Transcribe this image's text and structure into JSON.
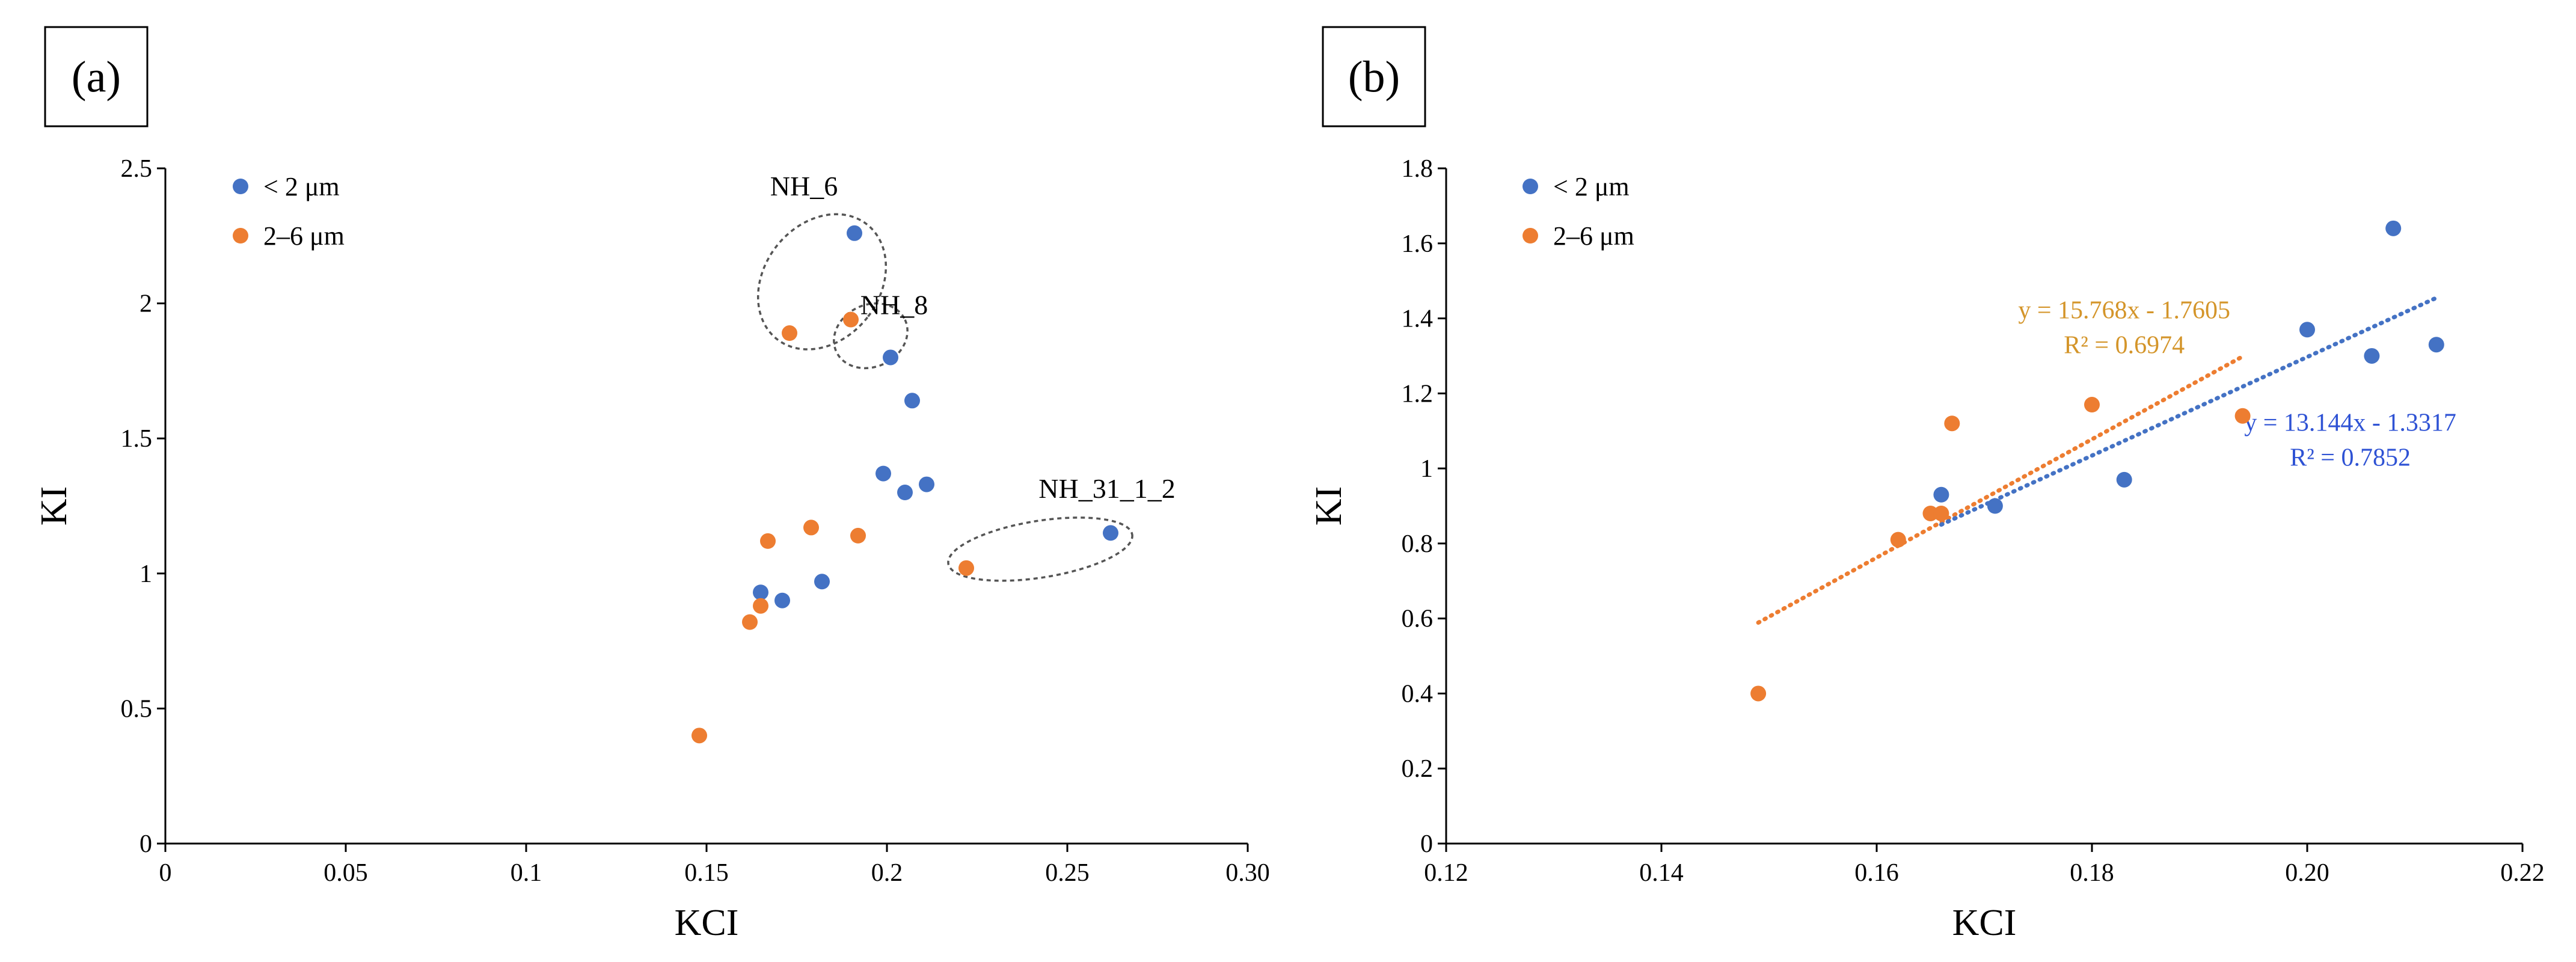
{
  "chart_data": [
    {
      "panel": "(a)",
      "type": "scatter",
      "xlabel": "KCI",
      "ylabel": "KI",
      "xlim": [
        0,
        0.3
      ],
      "ylim": [
        0,
        2.5
      ],
      "xticks": [
        "0",
        "0.05",
        "0.1",
        "0.15",
        "0.2",
        "0.25",
        "0.30"
      ],
      "yticks": [
        "0",
        "0.5",
        "1",
        "1.5",
        "2",
        "2.5"
      ],
      "legend_position": "top-left",
      "series": [
        {
          "name": "< 2 μm",
          "color": "#4472c4",
          "points": [
            [
              0.191,
              2.26
            ],
            [
              0.201,
              1.8
            ],
            [
              0.207,
              1.64
            ],
            [
              0.199,
              1.37
            ],
            [
              0.211,
              1.33
            ],
            [
              0.205,
              1.3
            ],
            [
              0.262,
              1.15
            ],
            [
              0.182,
              0.97
            ],
            [
              0.165,
              0.93
            ],
            [
              0.171,
              0.9
            ]
          ]
        },
        {
          "name": "2–6 μm",
          "color": "#ed7d31",
          "points": [
            [
              0.19,
              1.94
            ],
            [
              0.173,
              1.89
            ],
            [
              0.179,
              1.17
            ],
            [
              0.192,
              1.14
            ],
            [
              0.167,
              1.12
            ],
            [
              0.222,
              1.02
            ],
            [
              0.165,
              0.88
            ],
            [
              0.162,
              0.82
            ],
            [
              0.148,
              0.4
            ]
          ]
        }
      ],
      "annotations": [
        {
          "label": "NH_6",
          "ellipse": {
            "cx": 0.182,
            "cy": 2.08,
            "rx": 0.016,
            "ry": 0.27,
            "rotate": 38
          },
          "text_at": [
            0.177,
            2.4
          ]
        },
        {
          "label": "NH_8",
          "ellipse": {
            "cx": 0.1955,
            "cy": 1.88,
            "rx": 0.0105,
            "ry": 0.115,
            "rotate": -25
          },
          "text_at": [
            0.202,
            1.96
          ]
        },
        {
          "label": "NH_31_1_2",
          "ellipse": {
            "cx": 0.2425,
            "cy": 1.09,
            "rx": 0.0258,
            "ry": 0.105,
            "rotate": -9
          },
          "text_at": [
            0.261,
            1.28
          ]
        }
      ]
    },
    {
      "panel": "(b)",
      "type": "scatter",
      "xlabel": "KCI",
      "ylabel": "KI",
      "xlim": [
        0.12,
        0.22
      ],
      "ylim": [
        0,
        1.8
      ],
      "xticks": [
        "0.12",
        "0.14",
        "0.16",
        "0.18",
        "0.20",
        "0.22"
      ],
      "yticks": [
        "0",
        "0.2",
        "0.4",
        "0.6",
        "0.8",
        "1",
        "1.2",
        "1.4",
        "1.6",
        "1.8"
      ],
      "legend_position": "top-left",
      "series": [
        {
          "name": "< 2 μm",
          "color": "#4472c4",
          "points": [
            [
              0.166,
              0.93
            ],
            [
              0.171,
              0.9
            ],
            [
              0.183,
              0.97
            ],
            [
              0.2,
              1.37
            ],
            [
              0.206,
              1.3
            ],
            [
              0.208,
              1.64
            ],
            [
              0.212,
              1.33
            ]
          ]
        },
        {
          "name": "2–6 μm",
          "color": "#ed7d31",
          "points": [
            [
              0.149,
              0.4
            ],
            [
              0.162,
              0.81
            ],
            [
              0.165,
              0.88
            ],
            [
              0.166,
              0.88
            ],
            [
              0.167,
              1.12
            ],
            [
              0.18,
              1.17
            ],
            [
              0.194,
              1.14
            ]
          ]
        }
      ],
      "trendlines": [
        {
          "series": "2–6 μm",
          "slope": 15.768,
          "intercept": -1.7605,
          "x_range": [
            0.149,
            0.194
          ],
          "color": "#ed7d31",
          "equation": "y = 15.768x - 1.7605",
          "r2": "R² = 0.6974",
          "text_color": "#d4952a",
          "label_at": [
            0.183,
            1.4
          ]
        },
        {
          "series": "< 2 μm",
          "slope": 13.144,
          "intercept": -1.3317,
          "x_range": [
            0.166,
            0.212
          ],
          "color": "#4472c4",
          "equation": "y = 13.144x - 1.3317",
          "r2": "R² = 0.7852",
          "text_color": "#2e52d4",
          "label_at": [
            0.204,
            1.1
          ]
        }
      ]
    }
  ]
}
